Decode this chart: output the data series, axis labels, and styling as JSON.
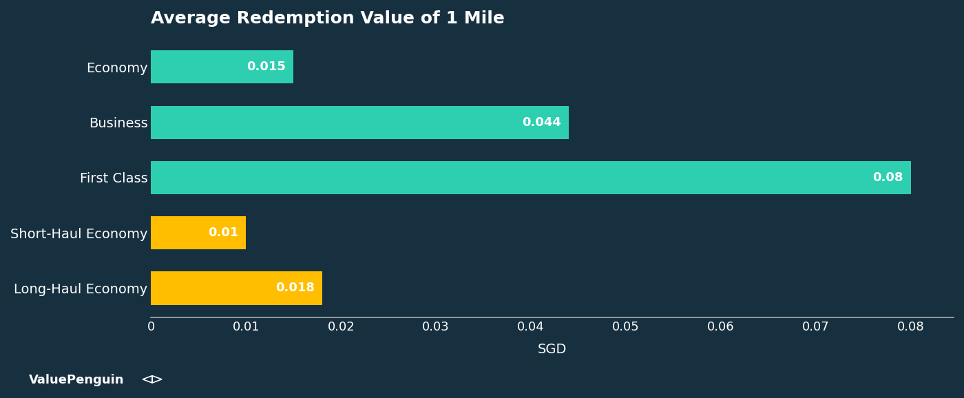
{
  "title": "Average Redemption Value of 1 Mile",
  "categories": [
    "Economy",
    "Business",
    "First Class",
    "Short-Haul Economy",
    "Long-Haul Economy"
  ],
  "values": [
    0.015,
    0.044,
    0.08,
    0.01,
    0.018
  ],
  "bar_colors": [
    "#2ECFB1",
    "#2ECFB1",
    "#2ECFB1",
    "#FFBE00",
    "#FFBE00"
  ],
  "bar_labels": [
    "0.015",
    "0.044",
    "0.08",
    "0.01",
    "0.018"
  ],
  "xlabel": "SGD",
  "xlim": [
    0,
    0.0845
  ],
  "xticks": [
    0,
    0.01,
    0.02,
    0.03,
    0.04,
    0.05,
    0.06,
    0.07,
    0.08
  ],
  "background_color": "#17303f",
  "text_color": "#ffffff",
  "axis_line_color": "#aaaaaa",
  "title_fontsize": 18,
  "label_fontsize": 14,
  "tick_fontsize": 13,
  "bar_label_fontsize": 13,
  "watermark": "ValuePenguin"
}
